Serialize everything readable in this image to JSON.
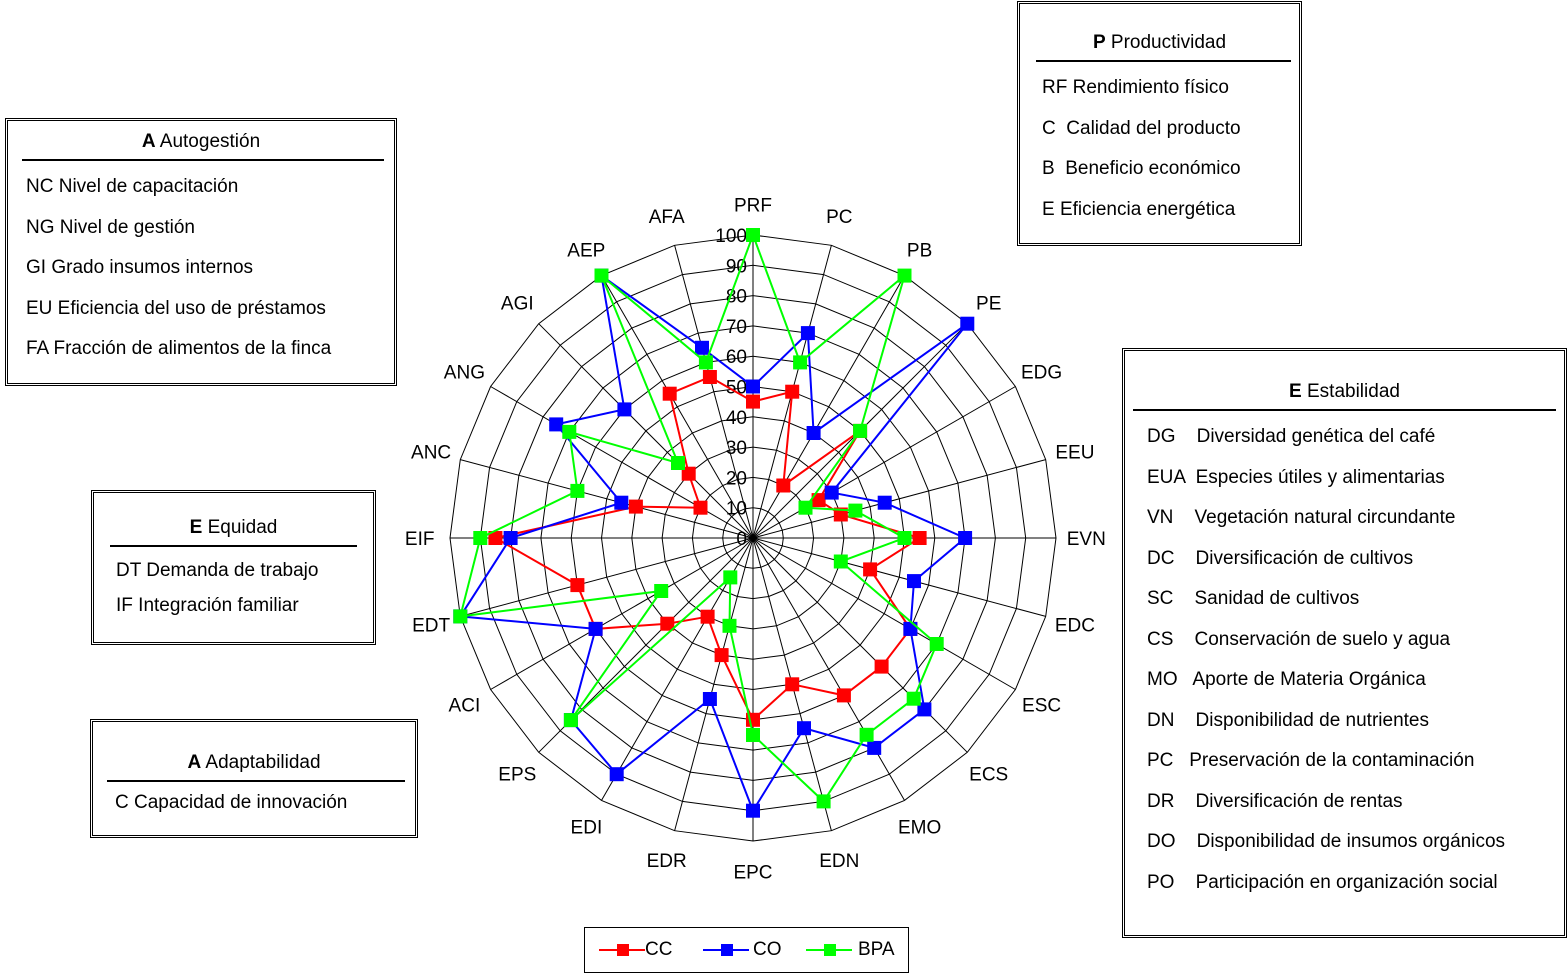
{
  "chart_data": {
    "type": "radar",
    "r_ticks": [
      "0",
      "10",
      "20",
      "30",
      "40",
      "50",
      "60",
      "70",
      "80",
      "90",
      "100"
    ],
    "rlim": [
      0,
      100
    ],
    "axes": [
      "PRF",
      "PC",
      "PB",
      "PE",
      "EDG",
      "EEU",
      "EVN",
      "EDC",
      "ESC",
      "ECS",
      "EMO",
      "EDN",
      "EPC",
      "EDR",
      "EDI",
      "EPS",
      "ACI",
      "EDT",
      "EIF",
      "ANC",
      "ANG",
      "AGI",
      "AEP",
      "AFA"
    ],
    "series": [
      {
        "name": "CC",
        "color": "#ff0000",
        "values": [
          45,
          50,
          20,
          50,
          25,
          30,
          55,
          40,
          60,
          60,
          60,
          50,
          60,
          40,
          30,
          40,
          60,
          60,
          85,
          40,
          20,
          30,
          55,
          55
        ]
      },
      {
        "name": "CO",
        "color": "#0000ff",
        "values": [
          50,
          70,
          40,
          100,
          30,
          45,
          70,
          55,
          60,
          80,
          80,
          65,
          90,
          55,
          90,
          85,
          60,
          100,
          80,
          45,
          75,
          60,
          100,
          65
        ]
      },
      {
        "name": "BPA",
        "color": "#00ff00",
        "values": [
          100,
          60,
          100,
          50,
          20,
          35,
          50,
          30,
          70,
          75,
          75,
          90,
          65,
          30,
          15,
          85,
          35,
          100,
          90,
          60,
          70,
          35,
          100,
          60
        ]
      }
    ]
  },
  "boxes": {
    "autogestion": {
      "head_letter": "A",
      "head_text": " Autogestión",
      "items": [
        "NC Nivel de capacitación",
        "NG Nivel de gestión",
        "GI Grado insumos internos",
        "EU Eficiencia del uso de préstamos",
        "FA Fracción de alimentos de la finca"
      ]
    },
    "productividad": {
      "head_letter": "P",
      "head_text": " Productividad",
      "items": [
        "RF Rendimiento físico",
        "C  Calidad del producto",
        "B  Beneficio económico",
        "E Eficiencia energética"
      ]
    },
    "estabilidad": {
      "head_letter": "E",
      "head_text": " Estabilidad",
      "items": [
        "DG    Diversidad genética del café",
        "EUA  Especies útiles y alimentarias",
        "VN    Vegetación natural circundante",
        "DC    Diversificación de cultivos",
        "SC    Sanidad de cultivos",
        "CS    Conservación de suelo y agua",
        "MO   Aporte de Materia Orgánica",
        "DN    Disponibilidad de nutrientes",
        "PC   Preservación de la contaminación",
        "DR    Diversificación de rentas",
        "DO    Disponibilidad de insumos orgánicos",
        "PO    Participación en organización social"
      ]
    },
    "equidad": {
      "head_letter": "E",
      "head_text": " Equidad",
      "items": [
        "DT Demanda de trabajo",
        "IF Integración familiar"
      ]
    },
    "adaptabilidad": {
      "head_letter": "A",
      "head_text": " Adaptabilidad",
      "items": [
        "C Capacidad de innovación"
      ]
    }
  },
  "legend": [
    "CC",
    "CO",
    "BPA"
  ]
}
